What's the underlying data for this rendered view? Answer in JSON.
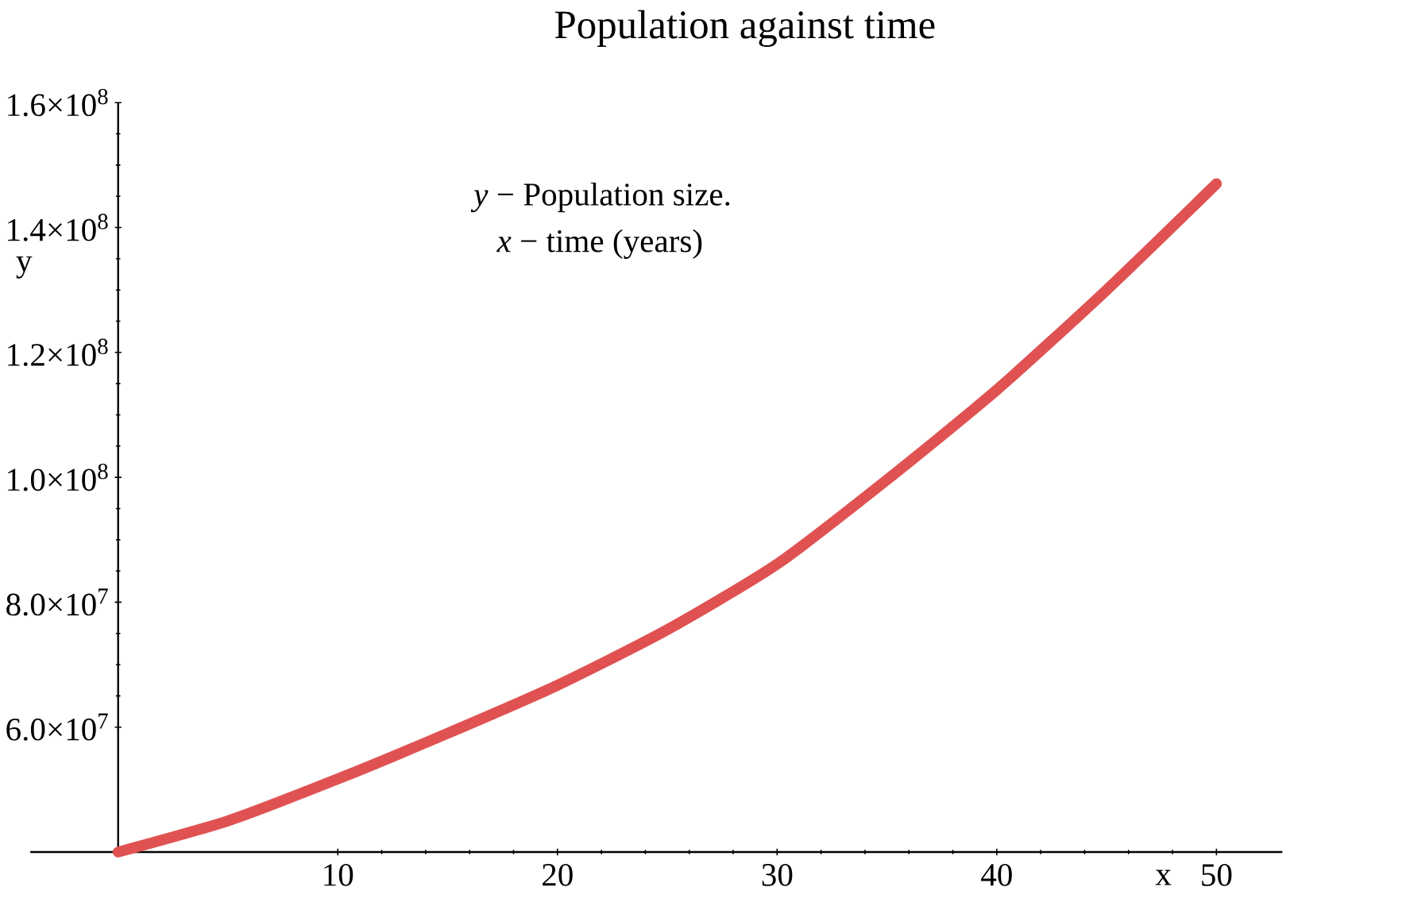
{
  "chart_data": {
    "type": "line",
    "title": "Population against time",
    "xlabel": "x",
    "ylabel": "y",
    "annotations": [
      "*y* − Population size.",
      "*x* − time (years)"
    ],
    "x": [
      0,
      5,
      10,
      15,
      20,
      25,
      30,
      35,
      40,
      45,
      50
    ],
    "values": [
      40000000,
      45000000,
      51700000,
      59000000,
      66700000,
      75600000,
      86100000,
      99600000,
      114000000,
      130000000,
      147000000
    ],
    "color": "#e05252",
    "xlim": [
      -4,
      53
    ],
    "ylim": [
      40000000,
      160000000
    ],
    "xticks": [
      10,
      20,
      30,
      40,
      50
    ],
    "yticks": [
      {
        "value": 60000000,
        "label": "6.0×10$^{7}$"
      },
      {
        "value": 80000000,
        "label": "8.0×10$^{7}$"
      },
      {
        "value": 100000000,
        "label": "1.0×10$^{8}$"
      },
      {
        "value": 120000000,
        "label": "1.2×10$^{8}$"
      },
      {
        "value": 140000000,
        "label": "1.4×10$^{8}$"
      },
      {
        "value": 160000000,
        "label": "1.6×10$^{8}$"
      }
    ]
  }
}
